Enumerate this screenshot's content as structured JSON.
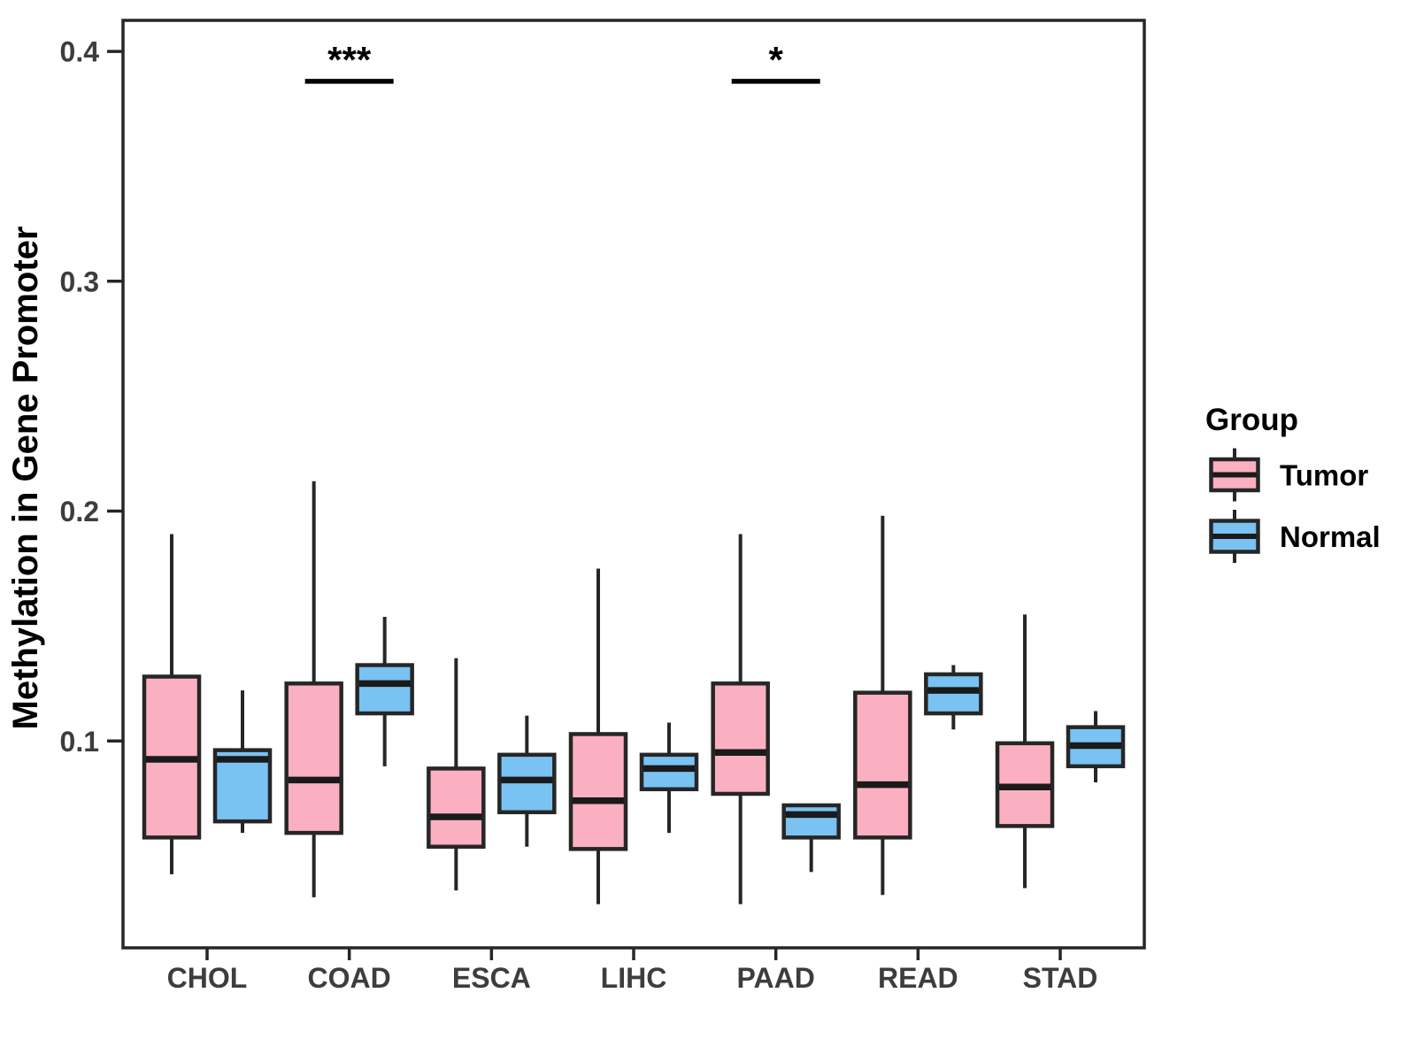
{
  "chart_data": {
    "type": "boxplot",
    "title": "",
    "xlabel": "",
    "ylabel": "Methylation in Gene Promoter",
    "legend_title": "Group",
    "legend_position": "right",
    "grid": false,
    "categories": [
      "CHOL",
      "COAD",
      "ESCA",
      "LIHC",
      "PAAD",
      "READ",
      "STAD"
    ],
    "groups": [
      "Tumor",
      "Normal"
    ],
    "ylim": [
      0.01,
      0.4135
    ],
    "yticks": [
      0.1,
      0.2,
      0.3,
      0.4
    ],
    "colors": {
      "tumor_fill": "#FAB0C1",
      "normal_fill": "#79C2F2",
      "box_border": "#262626",
      "median_line": "#1a1a1a",
      "axis_line": "#262626",
      "axis_text": "#3d3d3d",
      "significance": "#000000"
    },
    "series": [
      {
        "name": "Tumor",
        "color": "#FAB0C1",
        "stats": [
          {
            "category": "CHOL",
            "whisker_low": 0.042,
            "q1": 0.058,
            "median": 0.092,
            "q3": 0.128,
            "whisker_high": 0.19
          },
          {
            "category": "COAD",
            "whisker_low": 0.032,
            "q1": 0.06,
            "median": 0.083,
            "q3": 0.125,
            "whisker_high": 0.213
          },
          {
            "category": "ESCA",
            "whisker_low": 0.035,
            "q1": 0.054,
            "median": 0.067,
            "q3": 0.088,
            "whisker_high": 0.136
          },
          {
            "category": "LIHC",
            "whisker_low": 0.029,
            "q1": 0.053,
            "median": 0.074,
            "q3": 0.103,
            "whisker_high": 0.175
          },
          {
            "category": "PAAD",
            "whisker_low": 0.029,
            "q1": 0.077,
            "median": 0.095,
            "q3": 0.125,
            "whisker_high": 0.19
          },
          {
            "category": "READ",
            "whisker_low": 0.033,
            "q1": 0.058,
            "median": 0.081,
            "q3": 0.121,
            "whisker_high": 0.198
          },
          {
            "category": "STAD",
            "whisker_low": 0.036,
            "q1": 0.063,
            "median": 0.08,
            "q3": 0.099,
            "whisker_high": 0.155
          }
        ]
      },
      {
        "name": "Normal",
        "color": "#79C2F2",
        "stats": [
          {
            "category": "CHOL",
            "whisker_low": 0.06,
            "q1": 0.065,
            "median": 0.092,
            "q3": 0.096,
            "whisker_high": 0.122
          },
          {
            "category": "COAD",
            "whisker_low": 0.089,
            "q1": 0.112,
            "median": 0.125,
            "q3": 0.133,
            "whisker_high": 0.154
          },
          {
            "category": "ESCA",
            "whisker_low": 0.054,
            "q1": 0.069,
            "median": 0.083,
            "q3": 0.094,
            "whisker_high": 0.111
          },
          {
            "category": "LIHC",
            "whisker_low": 0.06,
            "q1": 0.079,
            "median": 0.088,
            "q3": 0.094,
            "whisker_high": 0.108
          },
          {
            "category": "PAAD",
            "whisker_low": 0.043,
            "q1": 0.058,
            "median": 0.068,
            "q3": 0.072,
            "whisker_high": 0.072
          },
          {
            "category": "READ",
            "whisker_low": 0.105,
            "q1": 0.112,
            "median": 0.122,
            "q3": 0.129,
            "whisker_high": 0.133
          },
          {
            "category": "STAD",
            "whisker_low": 0.082,
            "q1": 0.089,
            "median": 0.098,
            "q3": 0.106,
            "whisker_high": 0.113
          }
        ]
      }
    ],
    "significance": [
      {
        "category": "COAD",
        "label": "***",
        "y": 0.387
      },
      {
        "category": "PAAD",
        "label": "*",
        "y": 0.387
      }
    ]
  }
}
